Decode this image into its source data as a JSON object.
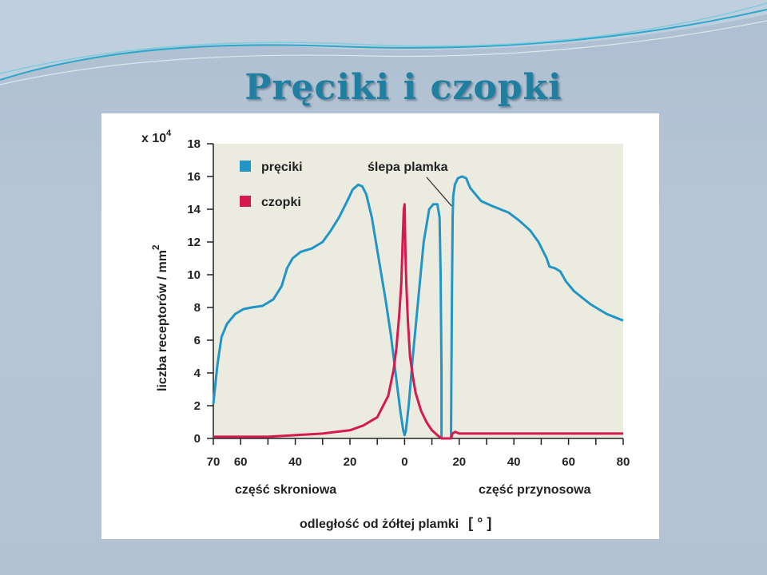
{
  "slide": {
    "title": "Pręciki i czopki"
  },
  "colors": {
    "plot_bg": "#ecebdf",
    "rods": "#2196c6",
    "cones": "#d51a4d"
  },
  "chart_data": {
    "type": "line",
    "ylabel": "liczba receptorów / mm",
    "ylabel_superscript": "2",
    "y_multiplier": "x 10",
    "y_multiplier_exp": "4",
    "xlabel": "odległość od żółtej plamki",
    "xlabel_unit": "[ ° ]",
    "x_left_label": "część skroniowa",
    "x_right_label": "część przynosowa",
    "annotation": "ślepa plamka",
    "xlim": [
      -70,
      80
    ],
    "ylim": [
      0,
      18
    ],
    "x_ticks": [
      -70,
      -60,
      -40,
      -20,
      0,
      20,
      40,
      60,
      80
    ],
    "x_tick_labels": [
      "70",
      "60",
      "40",
      "20",
      "0",
      "20",
      "40",
      "60",
      "80"
    ],
    "y_ticks": [
      0,
      2,
      4,
      6,
      8,
      10,
      12,
      14,
      16,
      18
    ],
    "y_tick_labels": [
      "0",
      "2",
      "4",
      "6",
      "8",
      "10",
      "12",
      "14",
      "16",
      "18"
    ],
    "series": [
      {
        "name": "pręciki",
        "x": [
          -70,
          -68.5,
          -67,
          -65,
          -62,
          -59,
          -56,
          -52,
          -48,
          -45,
          -43,
          -41,
          -38,
          -34,
          -30,
          -27,
          -24,
          -21,
          -19,
          -17,
          -15.5,
          -14,
          -12,
          -10,
          -7,
          -5,
          -3,
          -1.5,
          -0.5,
          0,
          0.5,
          1.5,
          3,
          5,
          7,
          9,
          10.5,
          12,
          12.8,
          13.2,
          13.5,
          13.5,
          14,
          17,
          17.3,
          17.6,
          17.8,
          18.4,
          19.5,
          21,
          22.5,
          24,
          26,
          28,
          32,
          38,
          42,
          46,
          49,
          52,
          53,
          55,
          57,
          59,
          62,
          65,
          68,
          71,
          74,
          77,
          80
        ],
        "y": [
          2.1,
          4.5,
          6.2,
          7.0,
          7.6,
          7.9,
          8.0,
          8.1,
          8.5,
          9.3,
          10.4,
          11.0,
          11.4,
          11.6,
          12.0,
          12.7,
          13.5,
          14.5,
          15.2,
          15.5,
          15.4,
          14.9,
          13.5,
          11.5,
          8.5,
          6.3,
          3.6,
          1.6,
          0.5,
          0.2,
          0.5,
          2.0,
          5.0,
          8.5,
          12.0,
          14.0,
          14.3,
          14.3,
          13.5,
          10.0,
          4.0,
          0,
          0,
          0,
          8.5,
          13.6,
          14.8,
          15.5,
          15.9,
          16.0,
          15.9,
          15.3,
          14.9,
          14.5,
          14.2,
          13.8,
          13.3,
          12.7,
          12.0,
          11.0,
          10.5,
          10.4,
          10.2,
          9.6,
          9.0,
          8.6,
          8.2,
          7.9,
          7.6,
          7.4,
          7.2
        ]
      },
      {
        "name": "czopki",
        "x": [
          -70,
          -50,
          -40,
          -30,
          -25,
          -20,
          -15,
          -10,
          -6,
          -4,
          -3,
          -2,
          -1.2,
          -0.6,
          -0.3,
          0,
          0.3,
          0.6,
          1.2,
          2,
          3,
          4,
          6,
          8,
          10,
          12,
          13.5,
          15,
          17,
          17.5,
          18.5,
          20,
          25,
          30,
          40,
          60,
          80
        ],
        "y": [
          0.1,
          0.1,
          0.2,
          0.3,
          0.4,
          0.5,
          0.8,
          1.3,
          2.6,
          4.2,
          5.5,
          7.5,
          9.5,
          12.5,
          14.0,
          14.3,
          11.5,
          9.5,
          7.2,
          5.0,
          3.8,
          2.8,
          1.7,
          1.0,
          0.5,
          0.2,
          0.0,
          0.0,
          0.0,
          0.3,
          0.4,
          0.3,
          0.3,
          0.3,
          0.3,
          0.3,
          0.3
        ]
      }
    ],
    "legend_position": "top-left",
    "grid": false
  }
}
